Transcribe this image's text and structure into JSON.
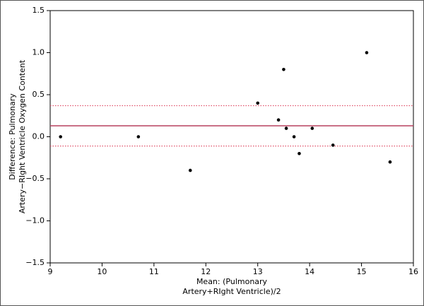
{
  "chart_data": {
    "type": "scatter",
    "x_label": [
      "Mean: (Pulmonary",
      "Artery+RIght Ventricle)/2"
    ],
    "y_label": [
      "Difference: Pulmonary",
      "Artery−RIght Ventricle Oxygen Content"
    ],
    "x": [
      9.2,
      10.7,
      11.7,
      13.0,
      13.4,
      13.5,
      13.55,
      13.7,
      13.8,
      14.05,
      14.45,
      15.1,
      15.55
    ],
    "values": [
      0.0,
      0.0,
      -0.4,
      0.4,
      0.2,
      0.8,
      0.1,
      0.0,
      -0.2,
      0.1,
      -0.1,
      1.0,
      -0.3
    ],
    "color": "#000000",
    "xlim": [
      9,
      16
    ],
    "xticks": [
      9,
      10,
      11,
      12,
      13,
      14,
      15,
      16
    ],
    "ylim": [
      -1.5,
      1.5
    ],
    "yticks": [
      1.5,
      {
        "value": 1.0,
        "label": "1.0"
      },
      0.5,
      {
        "value": 0.0,
        "label": "0.0"
      },
      {
        "value": -0.5,
        "label": "−0.5"
      },
      {
        "value": -1.0,
        "label": "−1.0"
      },
      {
        "value": -1.5,
        "label": "−1.5"
      }
    ],
    "lines": [
      {
        "value": 0.37,
        "color": "#e0506a",
        "style": "dotted"
      },
      {
        "value": 0.13,
        "color": "#b8405e",
        "style": "solid"
      },
      {
        "value": -0.11,
        "color": "#e0506a",
        "style": "dotted"
      }
    ]
  }
}
